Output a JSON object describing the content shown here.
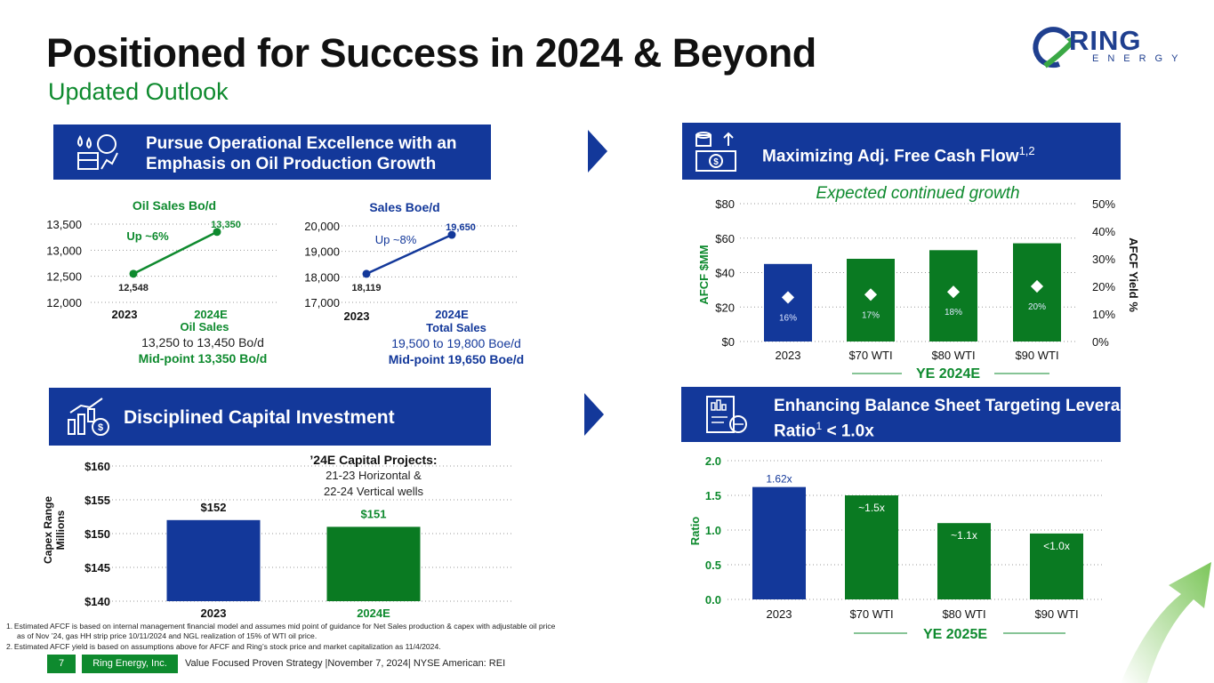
{
  "header": {
    "title": "Positioned for Success in 2024 & Beyond",
    "subtitle": "Updated Outlook",
    "logo_word": "RING",
    "logo_sub": "ENERGY"
  },
  "sections": {
    "ops": {
      "line1": "Pursue Operational Excellence with an",
      "line2": "Emphasis on Oil Production Growth"
    },
    "afcf": {
      "title": "Maximizing Adj. Free Cash Flow",
      "sup": "1,2"
    },
    "capital": {
      "title": "Disciplined Capital Investment"
    },
    "balance": {
      "line1": "Enhancing Balance Sheet Targeting Leverage",
      "line2_pre": "Ratio",
      "line2_sup": "1",
      "line2_post": " < 1.0x"
    }
  },
  "colors": {
    "blue": "#13389a",
    "green": "#0e8a2e",
    "darkgreen": "#0a7a22"
  },
  "chart_data": [
    {
      "type": "line",
      "title": "Oil Sales Bo/d",
      "x": [
        "2023",
        "2024E"
      ],
      "values": [
        12548,
        13350
      ],
      "value_labels": [
        "12,548",
        "13,350"
      ],
      "ylim": [
        12000,
        13500
      ],
      "yticks": [
        "13,500",
        "13,000",
        "12,500",
        "12,000"
      ],
      "annotation": "Up ~6%",
      "caption": {
        "label": "Oil Sales",
        "range": "13,250 to 13,450 Bo/d",
        "midpoint": "Mid-point 13,350 Bo/d"
      }
    },
    {
      "type": "line",
      "title": "Sales Boe/d",
      "x": [
        "2023",
        "2024E"
      ],
      "values": [
        18119,
        19650
      ],
      "value_labels": [
        "18,119",
        "19,650"
      ],
      "ylim": [
        17000,
        20000
      ],
      "yticks": [
        "20,000",
        "19,000",
        "18,000",
        "17,000"
      ],
      "annotation": "Up ~8%",
      "caption": {
        "label": "Total Sales",
        "range": "19,500 to 19,800 Boe/d",
        "midpoint": "Mid-point 19,650 Boe/d"
      }
    },
    {
      "type": "bar",
      "title": "Expected continued growth",
      "categories": [
        "2023",
        "$70 WTI",
        "$80 WTI",
        "$90 WTI"
      ],
      "values": [
        45,
        48,
        53,
        57
      ],
      "yield_values": [
        16,
        17,
        18,
        20
      ],
      "yield_labels": [
        "16%",
        "17%",
        "18%",
        "20%"
      ],
      "ylabel": "AFCF $MM",
      "y2label": "AFCF Yield %",
      "ylim": [
        0,
        80
      ],
      "y2lim": [
        0,
        50
      ],
      "yticks": [
        "$80",
        "$60",
        "$40",
        "$20",
        "$0"
      ],
      "y2ticks": [
        "50%",
        "40%",
        "30%",
        "20%",
        "10%",
        "0%"
      ],
      "group_label": "YE 2024E"
    },
    {
      "type": "bar",
      "categories": [
        "2023",
        "2024E"
      ],
      "values": [
        152,
        151
      ],
      "value_labels": [
        "$152",
        "$151"
      ],
      "ylabel1": "Capex Range",
      "ylabel2": "Millions",
      "ylim": [
        140,
        160
      ],
      "yticks": [
        "$160",
        "$155",
        "$150",
        "$145",
        "$140"
      ],
      "annotation_title": "’24E Capital Projects:",
      "annotation_line1": "21-23 Horizontal &",
      "annotation_line2": "22-24 Vertical wells"
    },
    {
      "type": "bar",
      "categories": [
        "2023",
        "$70 WTI",
        "$80 WTI",
        "$90 WTI"
      ],
      "values": [
        1.62,
        1.5,
        1.1,
        0.95
      ],
      "value_labels": [
        "1.62x",
        "~1.5x",
        "~1.1x",
        "<1.0x"
      ],
      "ylabel": "Ratio",
      "ylim": [
        0,
        2
      ],
      "yticks": [
        "2.0",
        "1.5",
        "1.0",
        "0.5",
        "0.0"
      ],
      "group_label": "YE 2025E"
    }
  ],
  "footnotes": {
    "n1a": "1. Estimated AFCF is based on internal management financial model and assumes mid point of guidance for Net Sales production & capex with adjustable oil price",
    "n1b": "as of Nov ’24, gas HH strip price 10/11/2024 and NGL realization of 15% of WTI oil price.",
    "n2": "2. Estimated AFCF yield is based on assumptions above for AFCF and Ring’s stock price and market capitalization as 11/4/2024."
  },
  "footer": {
    "page": "7",
    "company": "Ring Energy, Inc.",
    "strategy": "Value Focused Proven Strategy  |November 7, 2024|  NYSE American: REI"
  }
}
